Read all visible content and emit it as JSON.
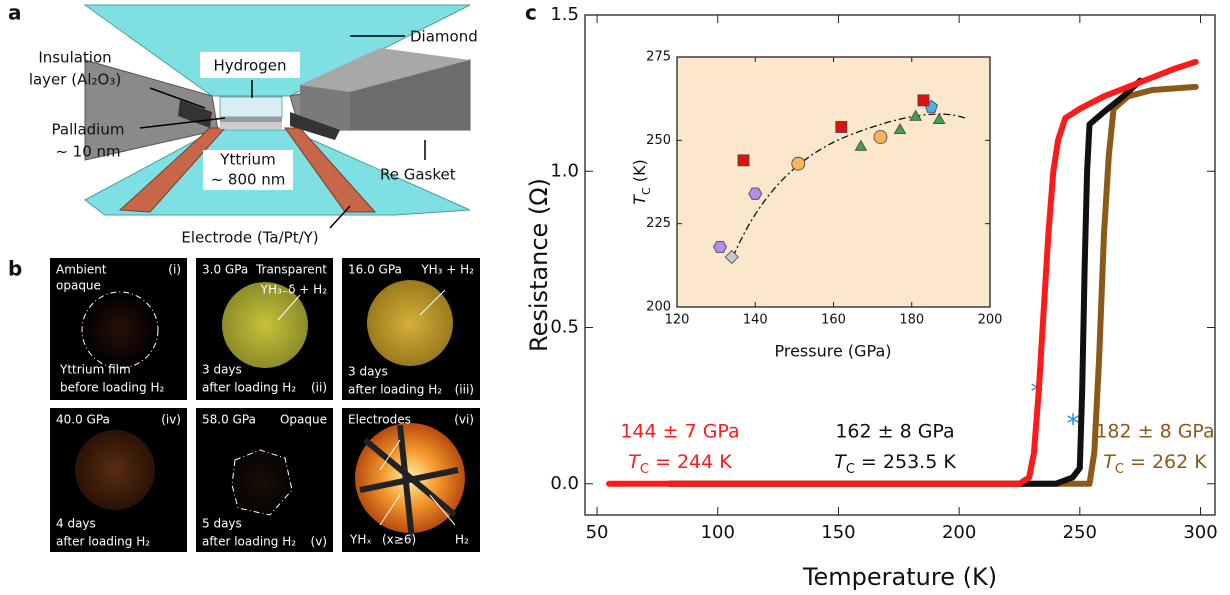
{
  "figure": {
    "panel_labels": [
      "a",
      "b",
      "c"
    ],
    "diagram": {
      "diamond": "Diamond",
      "insulation": [
        "Insulation",
        "layer (Al₂O₃)"
      ],
      "hydrogen": "Hydrogen",
      "palladium": [
        "Palladium",
        "~ 10 nm"
      ],
      "yttrium": [
        "Yttrium",
        "~ 800 nm"
      ],
      "gasket": "Re Gasket",
      "electrode": "Electrode (Ta/Pt/Y)"
    },
    "photos": [
      [
        "Ambient",
        "opaque",
        "(i)",
        "Yttrium film",
        "before loading H₂"
      ],
      [
        "3.0 GPa",
        "Transparent",
        "YH₃₋δ + H₂",
        "3 days",
        "after loading H₂",
        "(ii)"
      ],
      [
        "16.0 GPa",
        "YH₃ + H₂",
        "3 days",
        "after loading H₂",
        "(iii)"
      ],
      [
        "40.0 GPa",
        "(iv)",
        "4 days",
        "after loading H₂"
      ],
      [
        "58.0 GPa",
        "Opaque",
        "5 days",
        "after loading H₂",
        "(v)"
      ],
      [
        "Electrodes",
        "(vi)",
        "YHₓ",
        "(x≥6)",
        "H₂"
      ]
    ]
  },
  "chart_data": [
    {
      "type": "line",
      "xlabel": "Temperature (K)",
      "ylabel": "Resistance (Ω)",
      "xlim": [
        45,
        306
      ],
      "xticks": [
        50,
        100,
        150,
        200,
        250,
        300
      ],
      "ylim": [
        -0.1,
        1.5
      ],
      "yticks": [
        {
          "value": 0,
          "label": "0.0"
        },
        {
          "value": 0.5,
          "label": "0.5"
        },
        {
          "value": 1,
          "label": "1.0"
        },
        {
          "value": 1.5,
          "label": "1.5"
        }
      ],
      "annotations": [
        "*",
        "*"
      ],
      "series": [
        {
          "name": "144 ± 7 GPa",
          "tc_label": [
            "T",
            "C",
            " = 244 K"
          ],
          "color": "#ff1a1a",
          "x": [
            55,
            100,
            150,
            200,
            225,
            229,
            231,
            233,
            235,
            237,
            239,
            241,
            244,
            250,
            260,
            270,
            280,
            290,
            298
          ],
          "values": [
            0,
            0,
            0,
            0,
            0,
            0.02,
            0.1,
            0.3,
            0.55,
            0.8,
            1.0,
            1.1,
            1.17,
            1.2,
            1.24,
            1.27,
            1.3,
            1.33,
            1.35
          ]
        },
        {
          "name": "162 ± 8 GPa",
          "tc_label": [
            "T",
            "C",
            " = 253.5 K"
          ],
          "color": "#111111",
          "x": [
            80,
            120,
            160,
            200,
            240,
            247,
            250,
            251,
            252,
            253,
            254,
            260,
            268,
            275
          ],
          "values": [
            0,
            0,
            0,
            0,
            0,
            0.02,
            0.05,
            0.3,
            0.7,
            1.0,
            1.15,
            1.19,
            1.24,
            1.29
          ]
        },
        {
          "name": "182 ± 8 GPa",
          "tc_label": [
            "T",
            "C",
            " = 262 K"
          ],
          "color": "#8b5a1a",
          "x": [
            80,
            120,
            160,
            200,
            240,
            254,
            256,
            258,
            260,
            262,
            264,
            270,
            280,
            298
          ],
          "values": [
            0,
            0,
            0,
            0,
            0,
            0,
            0.1,
            0.4,
            0.8,
            1.05,
            1.2,
            1.24,
            1.26,
            1.27
          ]
        }
      ]
    },
    {
      "type": "scatter",
      "xlabel": "Pressure (GPa)",
      "ylabel": [
        "T",
        "C",
        " (K)"
      ],
      "background": "#fbe7cb",
      "xlim": [
        120,
        200
      ],
      "xticks": [
        120,
        140,
        160,
        180,
        200
      ],
      "ylim": [
        200,
        275
      ],
      "yticks": [
        200,
        225,
        250,
        275
      ],
      "series": [
        {
          "marker": "diamond",
          "color": "#c8c8c8",
          "x": [
            134
          ],
          "values": [
            215
          ]
        },
        {
          "marker": "hexagon",
          "color": "#b48ee8",
          "x": [
            131,
            140
          ],
          "values": [
            218,
            234
          ]
        },
        {
          "marker": "circle",
          "color": "#f8b45a",
          "x": [
            151,
            172
          ],
          "values": [
            243,
            251
          ]
        },
        {
          "marker": "square",
          "color": "#e01010",
          "x": [
            137,
            162,
            183
          ],
          "values": [
            244,
            254,
            262
          ]
        },
        {
          "marker": "triangle",
          "color": "#3fa34a",
          "x": [
            167,
            177,
            181,
            187
          ],
          "values": [
            248,
            253,
            257,
            256
          ]
        },
        {
          "marker": "pentagon",
          "color": "#4fb0e8",
          "x": [
            185
          ],
          "values": [
            260
          ]
        }
      ]
    }
  ]
}
